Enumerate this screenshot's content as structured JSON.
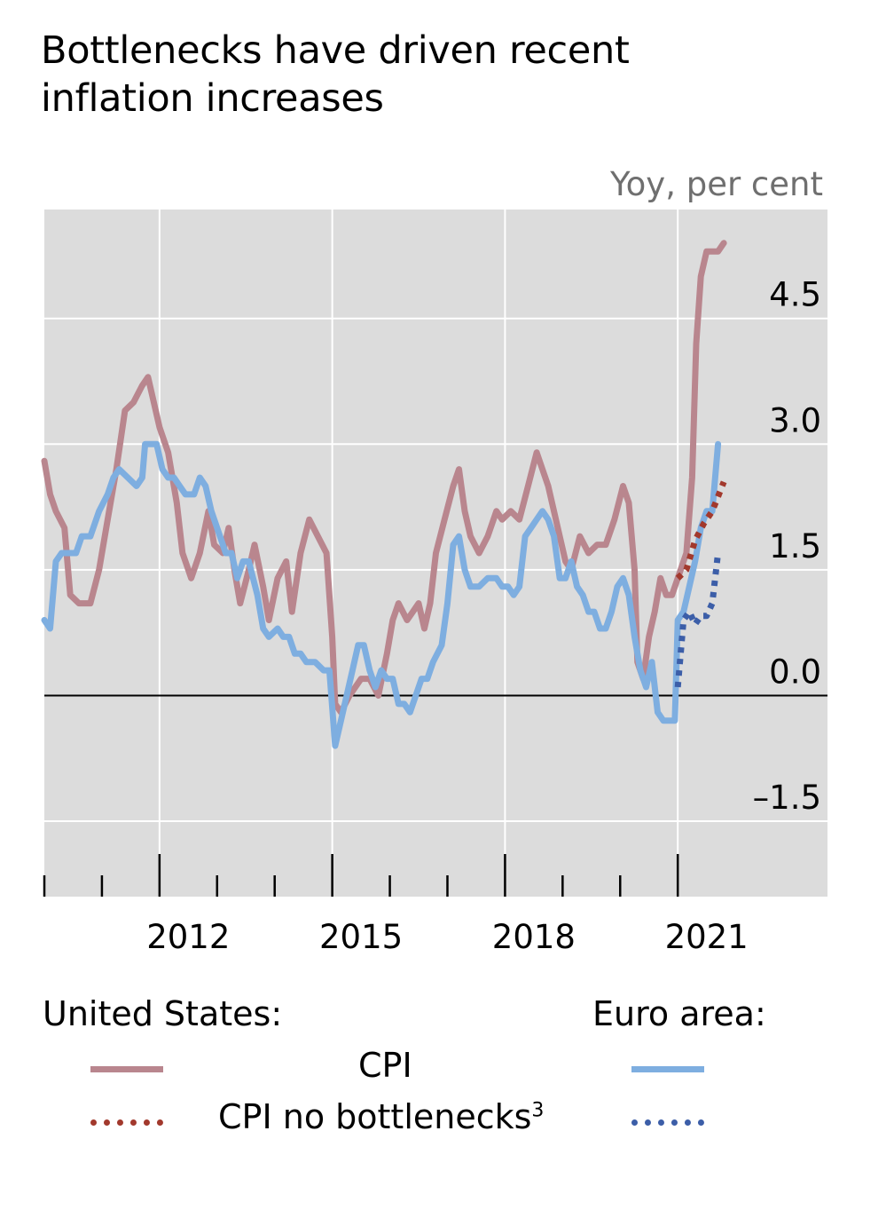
{
  "title_lines": [
    "Bottlenecks have driven recent",
    "inflation increases"
  ],
  "unit_label": "Yoy, per cent",
  "legend": {
    "group_us": "United States:",
    "group_ea": "Euro area:",
    "row1_label": "CPI",
    "row2_label": "CPI no bottlenecks",
    "row2_footnote": "3"
  },
  "colors": {
    "us_cpi": "#b9868e",
    "us_cpi_no_bottlenecks": "#a2392d",
    "ea_cpi": "#7eaee0",
    "ea_cpi_no_bottlenecks": "#3c5ea8",
    "plot_bg": "#dcdcdc",
    "grid": "#ffffff"
  },
  "chart_data": {
    "type": "line",
    "title": "Bottlenecks have driven recent inflation increases",
    "ylabel": "Yoy, per cent",
    "xlim": [
      2010.0,
      2023.6
    ],
    "ylim": [
      -2.4,
      5.8
    ],
    "y_ticks": [
      -1.5,
      0.0,
      1.5,
      3.0,
      4.5
    ],
    "y_tick_labels": [
      "–1.5",
      "0.0",
      "1.5",
      "3.0",
      "4.5"
    ],
    "x_tick_labels": [
      "2012",
      "2015",
      "2018",
      "2021"
    ],
    "x_tick_years": [
      2012,
      2015,
      2018,
      2021
    ],
    "legend_position": "bottom",
    "grid": true,
    "series": [
      {
        "name": "CPI",
        "group": "United States",
        "style": "solid",
        "color_key": "us_cpi",
        "points": [
          [
            2010.0,
            2.8
          ],
          [
            2010.1,
            2.4
          ],
          [
            2010.2,
            2.2
          ],
          [
            2010.35,
            2.0
          ],
          [
            2010.45,
            1.2
          ],
          [
            2010.6,
            1.1
          ],
          [
            2010.8,
            1.1
          ],
          [
            2010.95,
            1.5
          ],
          [
            2011.1,
            2.1
          ],
          [
            2011.25,
            2.7
          ],
          [
            2011.4,
            3.4
          ],
          [
            2011.55,
            3.5
          ],
          [
            2011.7,
            3.7
          ],
          [
            2011.8,
            3.8
          ],
          [
            2011.9,
            3.5
          ],
          [
            2012.0,
            3.2
          ],
          [
            2012.15,
            2.9
          ],
          [
            2012.3,
            2.3
          ],
          [
            2012.4,
            1.7
          ],
          [
            2012.55,
            1.4
          ],
          [
            2012.7,
            1.7
          ],
          [
            2012.85,
            2.2
          ],
          [
            2012.95,
            1.8
          ],
          [
            2013.1,
            1.7
          ],
          [
            2013.2,
            2.0
          ],
          [
            2013.3,
            1.5
          ],
          [
            2013.4,
            1.1
          ],
          [
            2013.55,
            1.5
          ],
          [
            2013.65,
            1.8
          ],
          [
            2013.8,
            1.3
          ],
          [
            2013.9,
            0.9
          ],
          [
            2014.05,
            1.4
          ],
          [
            2014.2,
            1.6
          ],
          [
            2014.3,
            1.0
          ],
          [
            2014.45,
            1.7
          ],
          [
            2014.6,
            2.1
          ],
          [
            2014.75,
            1.9
          ],
          [
            2014.9,
            1.7
          ],
          [
            2015.0,
            0.7
          ],
          [
            2015.05,
            -0.1
          ],
          [
            2015.15,
            -0.2
          ],
          [
            2015.3,
            0.0
          ],
          [
            2015.5,
            0.2
          ],
          [
            2015.65,
            0.2
          ],
          [
            2015.8,
            0.0
          ],
          [
            2015.95,
            0.5
          ],
          [
            2016.05,
            0.9
          ],
          [
            2016.15,
            1.1
          ],
          [
            2016.3,
            0.9
          ],
          [
            2016.4,
            1.0
          ],
          [
            2016.5,
            1.1
          ],
          [
            2016.6,
            0.8
          ],
          [
            2016.7,
            1.1
          ],
          [
            2016.8,
            1.7
          ],
          [
            2016.95,
            2.1
          ],
          [
            2017.1,
            2.5
          ],
          [
            2017.2,
            2.7
          ],
          [
            2017.3,
            2.2
          ],
          [
            2017.4,
            1.9
          ],
          [
            2017.55,
            1.7
          ],
          [
            2017.7,
            1.9
          ],
          [
            2017.85,
            2.2
          ],
          [
            2017.95,
            2.1
          ],
          [
            2018.1,
            2.2
          ],
          [
            2018.25,
            2.1
          ],
          [
            2018.4,
            2.5
          ],
          [
            2018.55,
            2.9
          ],
          [
            2018.65,
            2.7
          ],
          [
            2018.75,
            2.5
          ],
          [
            2018.85,
            2.2
          ],
          [
            2018.95,
            1.9
          ],
          [
            2019.05,
            1.6
          ],
          [
            2019.15,
            1.5
          ],
          [
            2019.3,
            1.9
          ],
          [
            2019.45,
            1.7
          ],
          [
            2019.6,
            1.8
          ],
          [
            2019.75,
            1.8
          ],
          [
            2019.9,
            2.1
          ],
          [
            2020.05,
            2.5
          ],
          [
            2020.15,
            2.3
          ],
          [
            2020.25,
            1.5
          ],
          [
            2020.3,
            0.4
          ],
          [
            2020.4,
            0.2
          ],
          [
            2020.5,
            0.7
          ],
          [
            2020.6,
            1.0
          ],
          [
            2020.7,
            1.4
          ],
          [
            2020.8,
            1.2
          ],
          [
            2020.9,
            1.2
          ],
          [
            2021.0,
            1.4
          ],
          [
            2021.15,
            1.7
          ],
          [
            2021.25,
            2.6
          ],
          [
            2021.32,
            4.2
          ],
          [
            2021.4,
            5.0
          ],
          [
            2021.5,
            5.3
          ],
          [
            2021.6,
            5.3
          ],
          [
            2021.7,
            5.3
          ],
          [
            2021.8,
            5.4
          ]
        ]
      },
      {
        "name": "CPI no bottlenecks",
        "group": "United States",
        "style": "dotted",
        "color_key": "us_cpi_no_bottlenecks",
        "points": [
          [
            2021.0,
            1.4
          ],
          [
            2021.15,
            1.5
          ],
          [
            2021.3,
            1.85
          ],
          [
            2021.45,
            2.05
          ],
          [
            2021.6,
            2.2
          ],
          [
            2021.8,
            2.55
          ]
        ]
      },
      {
        "name": "CPI",
        "group": "Euro area",
        "style": "solid",
        "color_key": "ea_cpi",
        "points": [
          [
            2010.0,
            0.9
          ],
          [
            2010.1,
            0.8
          ],
          [
            2010.2,
            1.6
          ],
          [
            2010.3,
            1.7
          ],
          [
            2010.45,
            1.7
          ],
          [
            2010.55,
            1.7
          ],
          [
            2010.65,
            1.9
          ],
          [
            2010.8,
            1.9
          ],
          [
            2010.95,
            2.2
          ],
          [
            2011.1,
            2.4
          ],
          [
            2011.2,
            2.6
          ],
          [
            2011.3,
            2.7
          ],
          [
            2011.45,
            2.6
          ],
          [
            2011.6,
            2.5
          ],
          [
            2011.7,
            2.6
          ],
          [
            2011.75,
            3.0
          ],
          [
            2011.85,
            3.0
          ],
          [
            2011.95,
            3.0
          ],
          [
            2012.05,
            2.7
          ],
          [
            2012.15,
            2.6
          ],
          [
            2012.25,
            2.6
          ],
          [
            2012.35,
            2.5
          ],
          [
            2012.45,
            2.4
          ],
          [
            2012.6,
            2.4
          ],
          [
            2012.7,
            2.6
          ],
          [
            2012.8,
            2.5
          ],
          [
            2012.9,
            2.2
          ],
          [
            2013.0,
            2.0
          ],
          [
            2013.15,
            1.7
          ],
          [
            2013.25,
            1.7
          ],
          [
            2013.35,
            1.4
          ],
          [
            2013.45,
            1.6
          ],
          [
            2013.55,
            1.6
          ],
          [
            2013.7,
            1.2
          ],
          [
            2013.8,
            0.8
          ],
          [
            2013.9,
            0.7
          ],
          [
            2014.05,
            0.8
          ],
          [
            2014.15,
            0.7
          ],
          [
            2014.25,
            0.7
          ],
          [
            2014.35,
            0.5
          ],
          [
            2014.45,
            0.5
          ],
          [
            2014.55,
            0.4
          ],
          [
            2014.7,
            0.4
          ],
          [
            2014.85,
            0.3
          ],
          [
            2014.95,
            0.3
          ],
          [
            2015.05,
            -0.6
          ],
          [
            2015.15,
            -0.3
          ],
          [
            2015.25,
            0.0
          ],
          [
            2015.35,
            0.3
          ],
          [
            2015.45,
            0.6
          ],
          [
            2015.55,
            0.6
          ],
          [
            2015.65,
            0.3
          ],
          [
            2015.75,
            0.1
          ],
          [
            2015.85,
            0.3
          ],
          [
            2015.95,
            0.2
          ],
          [
            2016.05,
            0.2
          ],
          [
            2016.15,
            -0.1
          ],
          [
            2016.25,
            -0.1
          ],
          [
            2016.35,
            -0.2
          ],
          [
            2016.45,
            0.0
          ],
          [
            2016.55,
            0.2
          ],
          [
            2016.65,
            0.2
          ],
          [
            2016.75,
            0.4
          ],
          [
            2016.9,
            0.6
          ],
          [
            2017.0,
            1.1
          ],
          [
            2017.1,
            1.8
          ],
          [
            2017.2,
            1.9
          ],
          [
            2017.3,
            1.5
          ],
          [
            2017.4,
            1.3
          ],
          [
            2017.55,
            1.3
          ],
          [
            2017.7,
            1.4
          ],
          [
            2017.85,
            1.4
          ],
          [
            2017.95,
            1.3
          ],
          [
            2018.05,
            1.3
          ],
          [
            2018.15,
            1.2
          ],
          [
            2018.25,
            1.3
          ],
          [
            2018.35,
            1.9
          ],
          [
            2018.45,
            2.0
          ],
          [
            2018.55,
            2.1
          ],
          [
            2018.65,
            2.2
          ],
          [
            2018.75,
            2.1
          ],
          [
            2018.85,
            1.9
          ],
          [
            2018.95,
            1.4
          ],
          [
            2019.05,
            1.4
          ],
          [
            2019.15,
            1.6
          ],
          [
            2019.25,
            1.3
          ],
          [
            2019.35,
            1.2
          ],
          [
            2019.45,
            1.0
          ],
          [
            2019.55,
            1.0
          ],
          [
            2019.65,
            0.8
          ],
          [
            2019.75,
            0.8
          ],
          [
            2019.85,
            1.0
          ],
          [
            2019.95,
            1.3
          ],
          [
            2020.05,
            1.4
          ],
          [
            2020.15,
            1.2
          ],
          [
            2020.25,
            0.7
          ],
          [
            2020.35,
            0.3
          ],
          [
            2020.45,
            0.1
          ],
          [
            2020.55,
            0.4
          ],
          [
            2020.65,
            -0.2
          ],
          [
            2020.75,
            -0.3
          ],
          [
            2020.85,
            -0.3
          ],
          [
            2020.95,
            -0.3
          ],
          [
            2021.0,
            0.9
          ],
          [
            2021.1,
            1.0
          ],
          [
            2021.2,
            1.3
          ],
          [
            2021.3,
            1.6
          ],
          [
            2021.4,
            2.0
          ],
          [
            2021.5,
            2.2
          ],
          [
            2021.6,
            2.2
          ],
          [
            2021.7,
            3.0
          ]
        ]
      },
      {
        "name": "CPI no bottlenecks",
        "group": "Euro area",
        "style": "dotted",
        "color_key": "ea_cpi_no_bottlenecks",
        "points": [
          [
            2021.0,
            0.1
          ],
          [
            2021.1,
            0.9
          ],
          [
            2021.2,
            1.0
          ],
          [
            2021.3,
            0.85
          ],
          [
            2021.4,
            0.95
          ],
          [
            2021.5,
            0.95
          ],
          [
            2021.6,
            1.1
          ],
          [
            2021.7,
            1.7
          ]
        ]
      }
    ]
  }
}
